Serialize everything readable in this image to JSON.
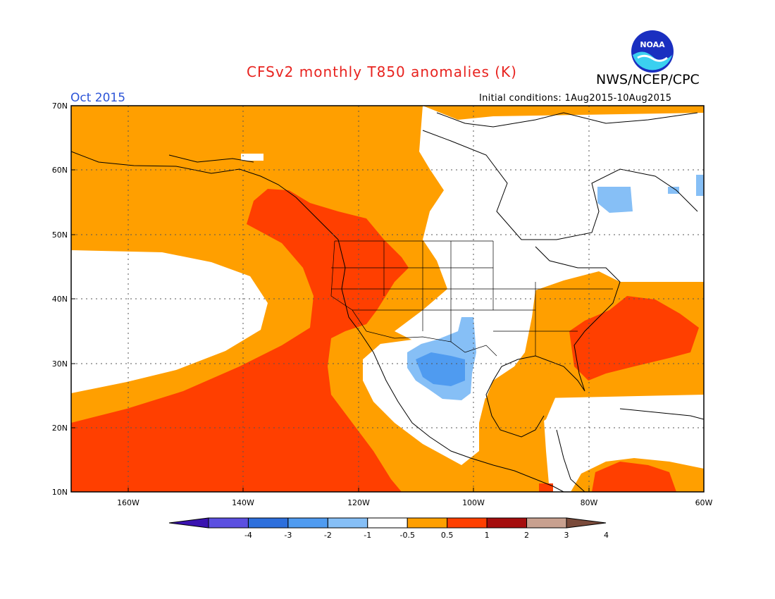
{
  "header": {
    "title": "CFSv2 monthly T850 anomalies (K)",
    "agency": "NWS/NCEP/CPC",
    "period": "Oct 2015",
    "initial_conditions": "Initial conditions: 1Aug2015-10Aug2015"
  },
  "logo": {
    "text": "NOAA",
    "icon": "noaa-logo-icon"
  },
  "map": {
    "lat_labels": [
      "70N",
      "60N",
      "50N",
      "40N",
      "30N",
      "20N",
      "10N"
    ],
    "lon_labels": [
      "160W",
      "140W",
      "120W",
      "100W",
      "80W",
      "60W"
    ],
    "lat_range": [
      10,
      70
    ],
    "lon_range": [
      -170,
      -60
    ],
    "grid": "dotted"
  },
  "colorbar": {
    "labels": [
      "-4",
      "-3",
      "-2",
      "-1",
      "-0.5",
      "0.5",
      "1",
      "2",
      "3",
      "4"
    ],
    "colors": [
      "#3a13b0",
      "#5b4fe0",
      "#2d6fdc",
      "#4f9bf0",
      "#86bff6",
      "#ffffff",
      "#ff9f00",
      "#ff3f00",
      "#a50d0d",
      "#c8a08f",
      "#7a4a3a"
    ]
  }
}
